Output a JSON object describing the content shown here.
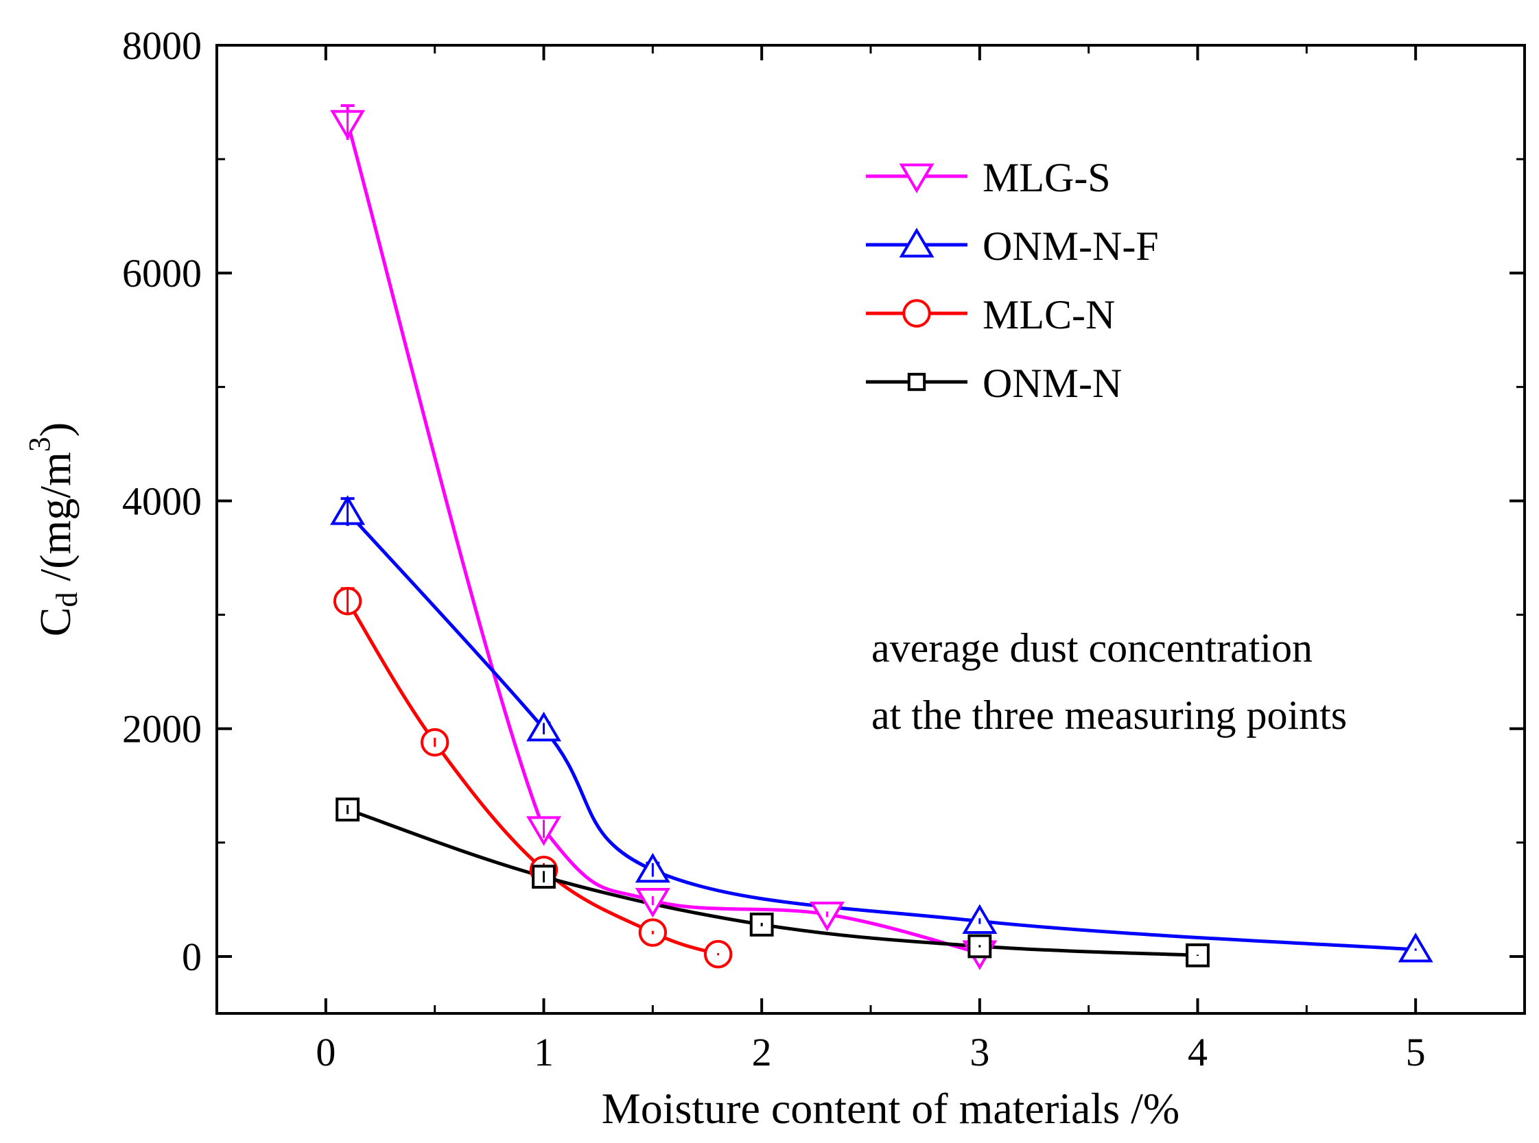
{
  "chart_data": {
    "type": "line",
    "title": "",
    "xlabel": "Moisture content of materials /%",
    "ylabel": {
      "main": "C",
      "subscript": "d",
      "unit_open": " /(mg/m",
      "superscript": "3",
      "unit_close": ")"
    },
    "xlim": [
      -0.5,
      5.5
    ],
    "ylim": [
      -500,
      8000
    ],
    "x_ticks": [
      0,
      1,
      2,
      3,
      4,
      5
    ],
    "x_tick_labels": [
      "0",
      "1",
      "2",
      "3",
      "4",
      "5"
    ],
    "x_minor_ticks": [
      -0.5,
      0.5,
      1.5,
      2.5,
      3.5,
      4.5
    ],
    "y_ticks": [
      0,
      2000,
      4000,
      6000,
      8000
    ],
    "y_tick_labels": [
      "0",
      "2000",
      "4000",
      "6000",
      "8000"
    ],
    "y_minor_ticks": [
      1000,
      3000,
      5000,
      7000
    ],
    "grid": false,
    "legend_position": "top-right",
    "annotation": [
      "average dust concentration",
      "at the three measuring points"
    ],
    "series": [
      {
        "name": "MLG-S",
        "color": "#ff00ff",
        "marker": "triangle-down",
        "x": [
          0.1,
          1.0,
          1.5,
          2.3,
          3.0
        ],
        "y": [
          7320,
          1120,
          490,
          370,
          30
        ],
        "error": [
          150,
          80,
          40,
          25,
          15
        ]
      },
      {
        "name": "ONM-N-F",
        "color": "#0000ff",
        "marker": "triangle-up",
        "x": [
          0.1,
          1.0,
          1.5,
          3.0,
          5.0
        ],
        "y": [
          3900,
          2000,
          760,
          310,
          60
        ],
        "error": [
          120,
          50,
          60,
          25,
          10
        ]
      },
      {
        "name": "MLC-N",
        "color": "#ff0000",
        "marker": "circle",
        "x": [
          0.1,
          0.5,
          1.0,
          1.5,
          1.8
        ],
        "y": [
          3120,
          1880,
          760,
          210,
          20
        ],
        "error": [
          110,
          40,
          60,
          15,
          10
        ]
      },
      {
        "name": "ONM-N",
        "color": "#000000",
        "marker": "square",
        "x": [
          0.1,
          1.0,
          2.0,
          3.0,
          4.0
        ],
        "y": [
          1290,
          700,
          280,
          90,
          10
        ],
        "error": [
          40,
          50,
          15,
          10,
          5
        ]
      }
    ]
  }
}
